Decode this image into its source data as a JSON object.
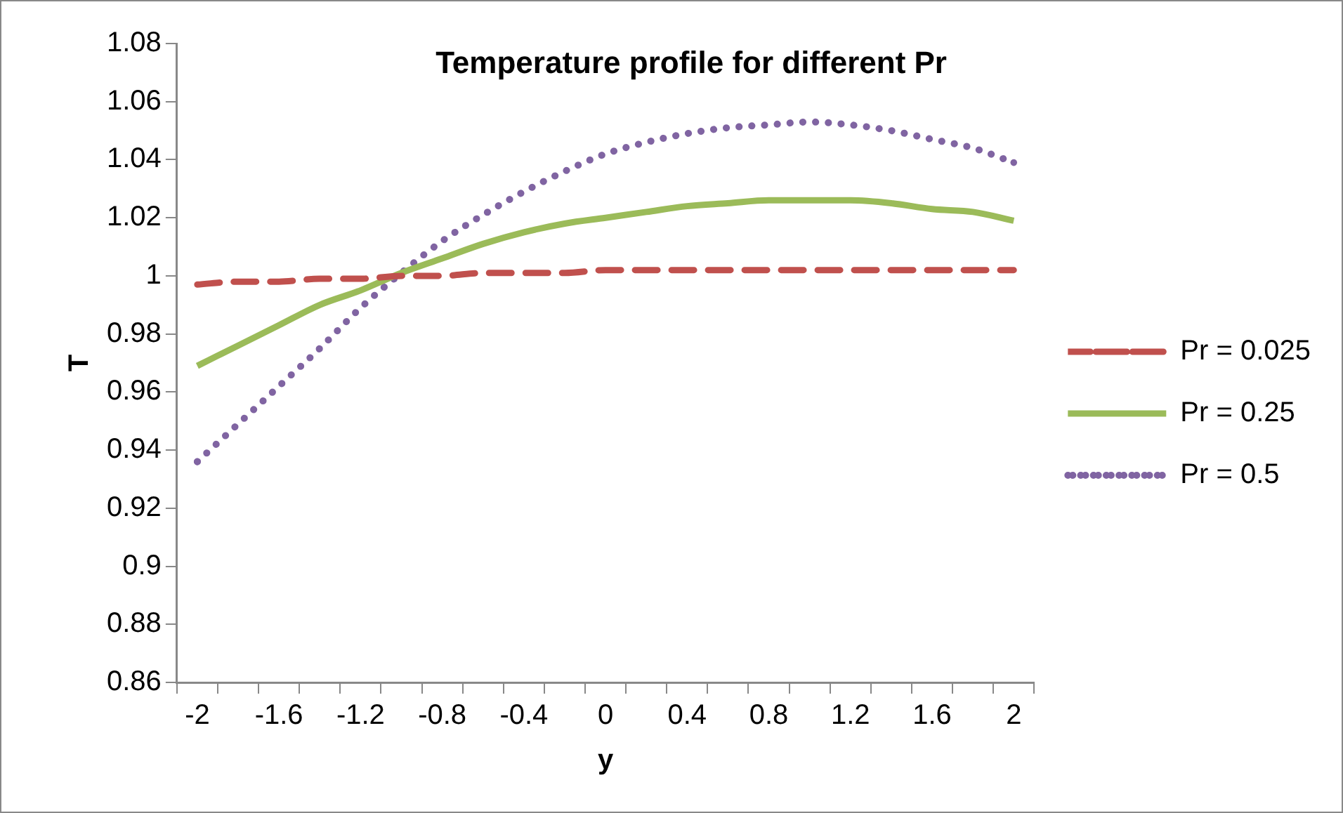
{
  "chart_data": {
    "type": "line",
    "title": "Temperature profile for different Pr",
    "xlabel": "y",
    "ylabel": "T",
    "categories": [
      "-2",
      null,
      "-1.6",
      null,
      "-1.2",
      null,
      "-0.8",
      null,
      "-0.4",
      null,
      "0",
      null,
      "0.4",
      null,
      "0.8",
      null,
      "1.2",
      null,
      "1.6",
      null,
      "2"
    ],
    "series": [
      {
        "name": "Pr = 0.025",
        "color": "#c0504d",
        "line_style": "dashed",
        "values": [
          0.997,
          0.998,
          0.998,
          0.999,
          0.999,
          1.0,
          1.0,
          1.001,
          1.001,
          1.001,
          1.002,
          1.002,
          1.002,
          1.002,
          1.002,
          1.002,
          1.002,
          1.002,
          1.002,
          1.002,
          1.002
        ]
      },
      {
        "name": "Pr = 0.25",
        "color": "#9bbb59",
        "line_style": "solid",
        "values": [
          0.969,
          0.976,
          0.983,
          0.99,
          0.995,
          1.001,
          1.006,
          1.011,
          1.015,
          1.018,
          1.02,
          1.022,
          1.024,
          1.025,
          1.026,
          1.026,
          1.026,
          1.025,
          1.023,
          1.022,
          1.019
        ]
      },
      {
        "name": "Pr = 0.5",
        "color": "#8064a2",
        "line_style": "dotted",
        "values": [
          0.936,
          0.949,
          0.962,
          0.975,
          0.989,
          1.001,
          1.012,
          1.021,
          1.029,
          1.036,
          1.042,
          1.046,
          1.049,
          1.051,
          1.052,
          1.053,
          1.052,
          1.05,
          1.047,
          1.044,
          1.039
        ]
      }
    ],
    "ylim": [
      0.86,
      1.08
    ],
    "yticks": [
      0.86,
      0.88,
      0.9,
      0.92,
      0.94,
      0.96,
      0.98,
      1,
      1.02,
      1.04,
      1.06,
      1.08
    ],
    "grid": false,
    "legend": "right",
    "marker": "none"
  }
}
